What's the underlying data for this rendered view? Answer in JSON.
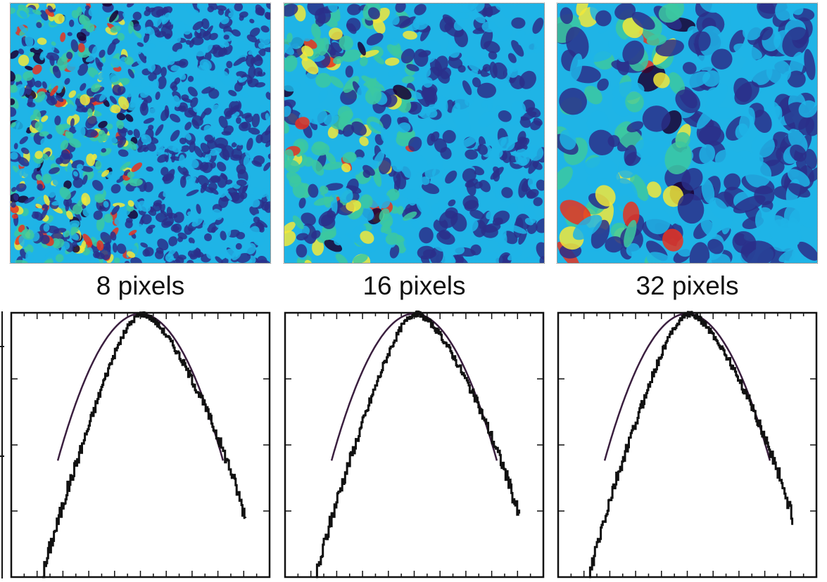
{
  "colors": {
    "background": "#ffffff",
    "colormap": [
      "#1a0033",
      "#2a2f8a",
      "#1fb4e6",
      "#3cc8a0",
      "#f2e83a",
      "#e8321e"
    ],
    "field": "#1fb4e6",
    "histogram": "#111111",
    "gaussian_fit": "#3a1f3f"
  },
  "panels": [
    {
      "label": "8 pixels",
      "scale": 8,
      "seed": 11
    },
    {
      "label": "16 pixels",
      "scale": 16,
      "seed": 23
    },
    {
      "label": "32 pixels",
      "scale": 32,
      "seed": 37
    }
  ],
  "chart_data": [
    {
      "type": "line",
      "panel": "8 pixels",
      "xlim": [
        -5,
        5
      ],
      "ylog": true,
      "ylim": [
        0.0001,
        1
      ],
      "grid": false,
      "series": [
        {
          "kind": "histogram",
          "x": [
            -3.8,
            -3.5,
            -3.2,
            -2.9,
            -2.6,
            -2.3,
            -2.0,
            -1.7,
            -1.4,
            -1.1,
            -0.8,
            -0.5,
            -0.2,
            0.0,
            0.2,
            0.5,
            0.8,
            1.1,
            1.4,
            1.7,
            2.0,
            2.3,
            2.6,
            2.9,
            3.2,
            3.5,
            3.8,
            4.1
          ],
          "y": [
            0.0001,
            0.0003,
            0.0007,
            0.0018,
            0.004,
            0.009,
            0.02,
            0.045,
            0.1,
            0.2,
            0.37,
            0.62,
            0.86,
            0.97,
            0.94,
            0.78,
            0.58,
            0.4,
            0.26,
            0.16,
            0.095,
            0.055,
            0.03,
            0.016,
            0.008,
            0.004,
            0.0017,
            0.0007
          ]
        },
        {
          "kind": "gaussian",
          "mean": 0.0,
          "sigma": 1.0,
          "peak": 0.97
        }
      ]
    },
    {
      "type": "line",
      "panel": "16 pixels",
      "xlim": [
        -5,
        5
      ],
      "ylog": true,
      "ylim": [
        0.0001,
        1
      ],
      "grid": false,
      "series": [
        {
          "kind": "histogram",
          "x": [
            -3.8,
            -3.5,
            -3.2,
            -2.9,
            -2.6,
            -2.3,
            -2.0,
            -1.7,
            -1.4,
            -1.1,
            -0.8,
            -0.5,
            -0.2,
            0.0,
            0.2,
            0.5,
            0.8,
            1.1,
            1.4,
            1.7,
            2.0,
            2.3,
            2.6,
            2.9,
            3.2,
            3.5,
            3.8,
            4.1
          ],
          "y": [
            0.0001,
            0.0003,
            0.0008,
            0.002,
            0.0045,
            0.01,
            0.022,
            0.048,
            0.1,
            0.2,
            0.37,
            0.62,
            0.86,
            0.97,
            0.94,
            0.78,
            0.58,
            0.4,
            0.26,
            0.16,
            0.095,
            0.055,
            0.03,
            0.016,
            0.008,
            0.004,
            0.0017,
            0.0007
          ]
        },
        {
          "kind": "gaussian",
          "mean": 0.0,
          "sigma": 1.0,
          "peak": 0.97
        }
      ]
    },
    {
      "type": "line",
      "panel": "32 pixels",
      "xlim": [
        -5,
        5
      ],
      "ylog": true,
      "ylim": [
        0.0001,
        1
      ],
      "grid": false,
      "series": [
        {
          "kind": "histogram",
          "x": [
            -3.8,
            -3.5,
            -3.2,
            -2.9,
            -2.6,
            -2.3,
            -2.0,
            -1.7,
            -1.4,
            -1.1,
            -0.8,
            -0.5,
            -0.2,
            0.0,
            0.2,
            0.5,
            0.8,
            1.1,
            1.4,
            1.7,
            2.0,
            2.3,
            2.6,
            2.9,
            3.2,
            3.5,
            3.8,
            4.1
          ],
          "y": [
            0.0001,
            0.0003,
            0.0008,
            0.002,
            0.0045,
            0.01,
            0.022,
            0.048,
            0.1,
            0.2,
            0.37,
            0.62,
            0.86,
            0.97,
            0.94,
            0.78,
            0.58,
            0.4,
            0.26,
            0.16,
            0.095,
            0.055,
            0.03,
            0.016,
            0.008,
            0.004,
            0.0017,
            0.0007
          ]
        },
        {
          "kind": "gaussian",
          "mean": 0.0,
          "sigma": 1.0,
          "peak": 0.97
        }
      ]
    }
  ]
}
